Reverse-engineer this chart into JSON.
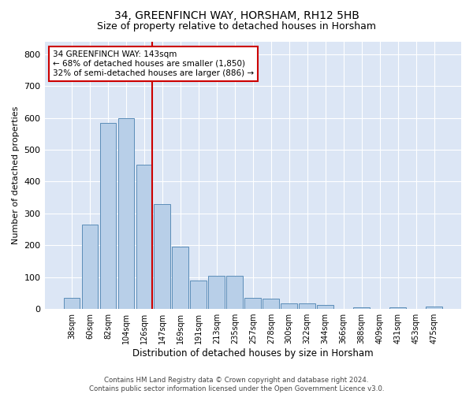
{
  "title1": "34, GREENFINCH WAY, HORSHAM, RH12 5HB",
  "title2": "Size of property relative to detached houses in Horsham",
  "xlabel": "Distribution of detached houses by size in Horsham",
  "ylabel": "Number of detached properties",
  "categories": [
    "38sqm",
    "60sqm",
    "82sqm",
    "104sqm",
    "126sqm",
    "147sqm",
    "169sqm",
    "191sqm",
    "213sqm",
    "235sqm",
    "257sqm",
    "278sqm",
    "300sqm",
    "322sqm",
    "344sqm",
    "366sqm",
    "388sqm",
    "409sqm",
    "431sqm",
    "453sqm",
    "475sqm"
  ],
  "values": [
    35,
    265,
    583,
    600,
    452,
    328,
    196,
    90,
    103,
    105,
    36,
    32,
    17,
    17,
    12,
    0,
    6,
    0,
    6,
    0,
    7
  ],
  "bar_color": "#b8cfe8",
  "bar_edge_color": "#5b8db8",
  "vline_color": "#cc0000",
  "annotation_text": "34 GREENFINCH WAY: 143sqm\n← 68% of detached houses are smaller (1,850)\n32% of semi-detached houses are larger (886) →",
  "annotation_box_color": "#ffffff",
  "annotation_box_edge": "#cc0000",
  "annotation_fontsize": 7.5,
  "background_color": "#dce6f5",
  "grid_color": "#ffffff",
  "ylim": [
    0,
    840
  ],
  "yticks": [
    0,
    100,
    200,
    300,
    400,
    500,
    600,
    700,
    800
  ],
  "footnote": "Contains HM Land Registry data © Crown copyright and database right 2024.\nContains public sector information licensed under the Open Government Licence v3.0.",
  "title_fontsize": 10,
  "subtitle_fontsize": 9,
  "ylabel_fontsize": 8,
  "xlabel_fontsize": 8.5
}
